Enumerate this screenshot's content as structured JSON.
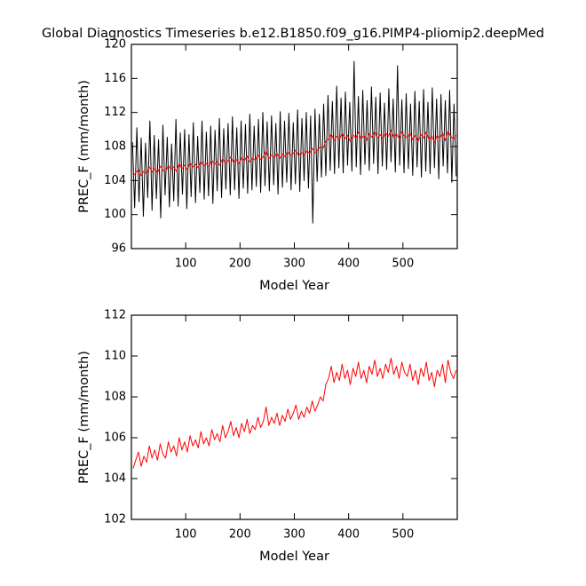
{
  "chart_data": [
    {
      "type": "line",
      "title": "Global Diagnostics Timeseries b.e12.B1850.f09_g16.PIMP4-pliomip2.deepMed",
      "xlabel": "Model Year",
      "ylabel": "PREC_F (mm/month)",
      "xlim": [
        0,
        600
      ],
      "xticks": [
        100,
        200,
        300,
        400,
        500
      ],
      "ylim": [
        96,
        120
      ],
      "yticks": [
        96,
        100,
        104,
        108,
        112,
        116,
        120
      ],
      "series": [
        {
          "color": "#000000",
          "x": [
            2,
            6,
            10,
            14,
            18,
            22,
            26,
            30,
            34,
            38,
            42,
            46,
            50,
            54,
            58,
            62,
            66,
            70,
            74,
            78,
            82,
            86,
            90,
            94,
            98,
            102,
            106,
            110,
            114,
            118,
            122,
            126,
            130,
            134,
            138,
            142,
            146,
            150,
            154,
            158,
            162,
            166,
            170,
            174,
            178,
            182,
            186,
            190,
            194,
            198,
            202,
            206,
            210,
            214,
            218,
            222,
            226,
            230,
            234,
            238,
            242,
            246,
            250,
            254,
            258,
            262,
            266,
            270,
            274,
            278,
            282,
            286,
            290,
            294,
            298,
            302,
            306,
            310,
            314,
            318,
            322,
            326,
            330,
            334,
            338,
            342,
            346,
            350,
            354,
            358,
            362,
            366,
            370,
            374,
            378,
            382,
            386,
            390,
            394,
            398,
            402,
            406,
            410,
            414,
            418,
            422,
            426,
            430,
            434,
            438,
            442,
            446,
            450,
            454,
            458,
            462,
            466,
            470,
            474,
            478,
            482,
            486,
            490,
            494,
            498,
            502,
            506,
            510,
            514,
            518,
            522,
            526,
            530,
            534,
            538,
            542,
            546,
            550,
            554,
            558,
            562,
            566,
            570,
            574,
            578,
            582,
            586,
            590,
            594,
            598
          ],
          "values": [
            108.5,
            100.8,
            110.2,
            101.5,
            109.0,
            99.8,
            108.4,
            102.0,
            111.0,
            100.5,
            109.3,
            101.9,
            108.8,
            99.6,
            110.5,
            102.3,
            109.1,
            100.9,
            108.3,
            101.6,
            111.2,
            101.0,
            109.6,
            102.4,
            110.0,
            100.7,
            109.4,
            102.1,
            110.8,
            101.4,
            109.2,
            102.6,
            111.0,
            101.8,
            109.7,
            102.2,
            110.4,
            101.3,
            109.9,
            102.8,
            111.3,
            102.0,
            110.1,
            103.0,
            110.7,
            102.3,
            111.5,
            102.9,
            110.2,
            101.9,
            111.0,
            103.1,
            110.6,
            102.5,
            111.8,
            102.9,
            110.4,
            103.3,
            111.2,
            102.6,
            112.0,
            103.4,
            110.9,
            102.8,
            111.6,
            103.5,
            110.7,
            102.4,
            112.1,
            103.2,
            111.0,
            103.8,
            111.9,
            102.9,
            110.8,
            103.6,
            112.3,
            102.7,
            111.3,
            104.0,
            112.0,
            103.1,
            111.6,
            99.0,
            112.4,
            103.9,
            111.8,
            104.4,
            113.0,
            104.6,
            114.0,
            105.2,
            113.3,
            104.8,
            115.1,
            105.5,
            113.7,
            104.9,
            114.4,
            105.8,
            113.2,
            105.1,
            118.0,
            105.6,
            113.9,
            104.7,
            114.6,
            105.9,
            113.4,
            105.2,
            115.0,
            106.0,
            113.8,
            104.8,
            114.3,
            105.7,
            113.1,
            105.3,
            114.8,
            106.2,
            113.6,
            105.0,
            117.5,
            105.8,
            113.5,
            104.9,
            114.2,
            105.4,
            113.0,
            104.6,
            114.5,
            105.6,
            113.3,
            104.4,
            114.7,
            105.1,
            113.2,
            104.8,
            114.9,
            105.5,
            113.6,
            104.2,
            114.1,
            105.7,
            113.4,
            104.9,
            114.6,
            103.8,
            113.0,
            104.5
          ]
        },
        {
          "color": "#ff0000",
          "x": [
            3,
            8,
            13,
            18,
            23,
            28,
            33,
            38,
            43,
            48,
            53,
            58,
            63,
            68,
            73,
            78,
            83,
            88,
            93,
            98,
            103,
            108,
            113,
            118,
            123,
            128,
            133,
            138,
            143,
            148,
            153,
            158,
            163,
            168,
            173,
            178,
            183,
            188,
            193,
            198,
            203,
            208,
            213,
            218,
            223,
            228,
            233,
            238,
            243,
            248,
            253,
            258,
            263,
            268,
            273,
            278,
            283,
            288,
            293,
            298,
            303,
            308,
            313,
            318,
            323,
            328,
            333,
            338,
            343,
            348,
            353,
            358,
            363,
            368,
            373,
            378,
            383,
            388,
            393,
            398,
            403,
            408,
            413,
            418,
            423,
            428,
            433,
            438,
            443,
            448,
            453,
            458,
            463,
            468,
            473,
            478,
            483,
            488,
            493,
            498,
            503,
            508,
            513,
            518,
            523,
            528,
            533,
            538,
            543,
            548,
            553,
            558,
            563,
            568,
            573,
            578,
            583,
            588,
            593,
            598
          ],
          "values": [
            104.5,
            104.9,
            105.3,
            104.6,
            105.1,
            104.8,
            105.6,
            105.0,
            105.4,
            104.9,
            105.7,
            105.2,
            105.0,
            105.8,
            105.3,
            105.6,
            105.1,
            106.0,
            105.4,
            105.8,
            105.3,
            106.1,
            105.6,
            105.9,
            105.5,
            106.3,
            105.7,
            106.0,
            105.6,
            106.4,
            105.9,
            106.2,
            105.8,
            106.6,
            106.0,
            106.3,
            106.8,
            106.1,
            106.5,
            106.0,
            106.7,
            106.3,
            106.9,
            106.2,
            106.6,
            106.4,
            107.0,
            106.5,
            106.8,
            107.5,
            106.6,
            107.0,
            106.7,
            107.2,
            106.6,
            107.1,
            106.8,
            107.4,
            106.9,
            107.2,
            107.6,
            106.9,
            107.3,
            107.0,
            107.5,
            107.2,
            107.8,
            107.3,
            107.6,
            108.0,
            107.8,
            108.6,
            108.9,
            109.5,
            108.7,
            109.2,
            108.8,
            109.6,
            108.9,
            109.3,
            108.6,
            109.4,
            109.0,
            109.7,
            108.9,
            109.3,
            108.7,
            109.5,
            109.1,
            109.8,
            109.0,
            109.4,
            108.9,
            109.6,
            109.2,
            109.9,
            109.1,
            109.5,
            108.9,
            109.7,
            109.2,
            109.0,
            109.6,
            108.8,
            109.3,
            108.6,
            109.4,
            109.0,
            109.7,
            108.8,
            109.2,
            108.5,
            109.3,
            109.0,
            109.6,
            108.7,
            109.8,
            109.2,
            108.9,
            109.3
          ]
        }
      ]
    },
    {
      "type": "line",
      "xlabel": "Model Year",
      "ylabel": "PREC_F (mm/month)",
      "xlim": [
        0,
        600
      ],
      "xticks": [
        100,
        200,
        300,
        400,
        500
      ],
      "ylim": [
        102,
        112
      ],
      "yticks": [
        102,
        104,
        106,
        108,
        110,
        112
      ],
      "series": [
        {
          "color": "#ff0000",
          "x": [
            3,
            8,
            13,
            18,
            23,
            28,
            33,
            38,
            43,
            48,
            53,
            58,
            63,
            68,
            73,
            78,
            83,
            88,
            93,
            98,
            103,
            108,
            113,
            118,
            123,
            128,
            133,
            138,
            143,
            148,
            153,
            158,
            163,
            168,
            173,
            178,
            183,
            188,
            193,
            198,
            203,
            208,
            213,
            218,
            223,
            228,
            233,
            238,
            243,
            248,
            253,
            258,
            263,
            268,
            273,
            278,
            283,
            288,
            293,
            298,
            303,
            308,
            313,
            318,
            323,
            328,
            333,
            338,
            343,
            348,
            353,
            358,
            363,
            368,
            373,
            378,
            383,
            388,
            393,
            398,
            403,
            408,
            413,
            418,
            423,
            428,
            433,
            438,
            443,
            448,
            453,
            458,
            463,
            468,
            473,
            478,
            483,
            488,
            493,
            498,
            503,
            508,
            513,
            518,
            523,
            528,
            533,
            538,
            543,
            548,
            553,
            558,
            563,
            568,
            573,
            578,
            583,
            588,
            593,
            598
          ],
          "values": [
            104.5,
            104.9,
            105.3,
            104.6,
            105.1,
            104.8,
            105.6,
            105.0,
            105.4,
            104.9,
            105.7,
            105.2,
            105.0,
            105.8,
            105.3,
            105.6,
            105.1,
            106.0,
            105.4,
            105.8,
            105.3,
            106.1,
            105.6,
            105.9,
            105.5,
            106.3,
            105.7,
            106.0,
            105.6,
            106.4,
            105.9,
            106.2,
            105.8,
            106.6,
            106.0,
            106.3,
            106.8,
            106.1,
            106.5,
            106.0,
            106.7,
            106.3,
            106.9,
            106.2,
            106.6,
            106.4,
            107.0,
            106.5,
            106.8,
            107.5,
            106.6,
            107.0,
            106.7,
            107.2,
            106.6,
            107.1,
            106.8,
            107.4,
            106.9,
            107.2,
            107.6,
            106.9,
            107.3,
            107.0,
            107.5,
            107.2,
            107.8,
            107.3,
            107.6,
            108.0,
            107.8,
            108.6,
            108.9,
            109.5,
            108.7,
            109.2,
            108.8,
            109.6,
            108.9,
            109.3,
            108.6,
            109.4,
            109.0,
            109.7,
            108.9,
            109.3,
            108.7,
            109.5,
            109.1,
            109.8,
            109.0,
            109.4,
            108.9,
            109.6,
            109.2,
            109.9,
            109.1,
            109.5,
            108.9,
            109.7,
            109.2,
            109.0,
            109.6,
            108.8,
            109.3,
            108.6,
            109.4,
            109.0,
            109.7,
            108.8,
            109.2,
            108.5,
            109.3,
            109.0,
            109.6,
            108.7,
            109.8,
            109.2,
            108.9,
            109.3
          ]
        }
      ]
    }
  ]
}
